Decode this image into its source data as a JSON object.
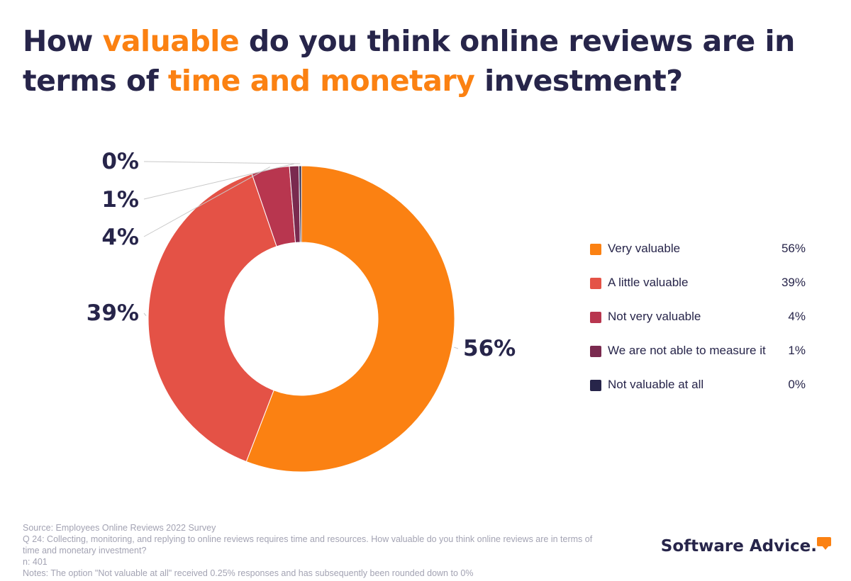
{
  "title": {
    "part1": "How ",
    "highlight1": "valuable",
    "part2": " do you think online reviews are in terms of ",
    "highlight2": "time and monetary",
    "part3": " investment?"
  },
  "colors": {
    "title_text": "#27254a",
    "title_highlight": "#fb8112"
  },
  "chart_data": {
    "type": "pie",
    "donut": true,
    "categories": [
      "Very valuable",
      "A little valuable",
      "Not very valuable",
      "We are not able to measure it",
      "Not valuable at all"
    ],
    "values": [
      56,
      39,
      4,
      1,
      0.25
    ],
    "labels": [
      "56%",
      "39%",
      "4%",
      "1%",
      "0%"
    ],
    "colors": [
      "#fb8112",
      "#e45246",
      "#b8364f",
      "#7a2a4f",
      "#27254a"
    ],
    "legend_position": "right"
  },
  "legend": [
    {
      "label": "Very valuable",
      "value": "56%"
    },
    {
      "label": "A little valuable",
      "value": "39%"
    },
    {
      "label": "Not very valuable",
      "value": "4%"
    },
    {
      "label": "We are not able to measure it",
      "value": "1%"
    },
    {
      "label": "Not valuable at all",
      "value": "0%"
    }
  ],
  "notes": {
    "source": "Source: Employees Online Reviews 2022 Survey",
    "question": "Q 24: Collecting, monitoring, and replying to online reviews requires time and resources. How valuable do you think online reviews are in terms of time and monetary investment?",
    "n": "n: 401",
    "note": "Notes: The option \"Not valuable at all\" received 0.25% responses and has subsequently been rounded down to 0%"
  },
  "brand": {
    "name": "Software Advice."
  }
}
